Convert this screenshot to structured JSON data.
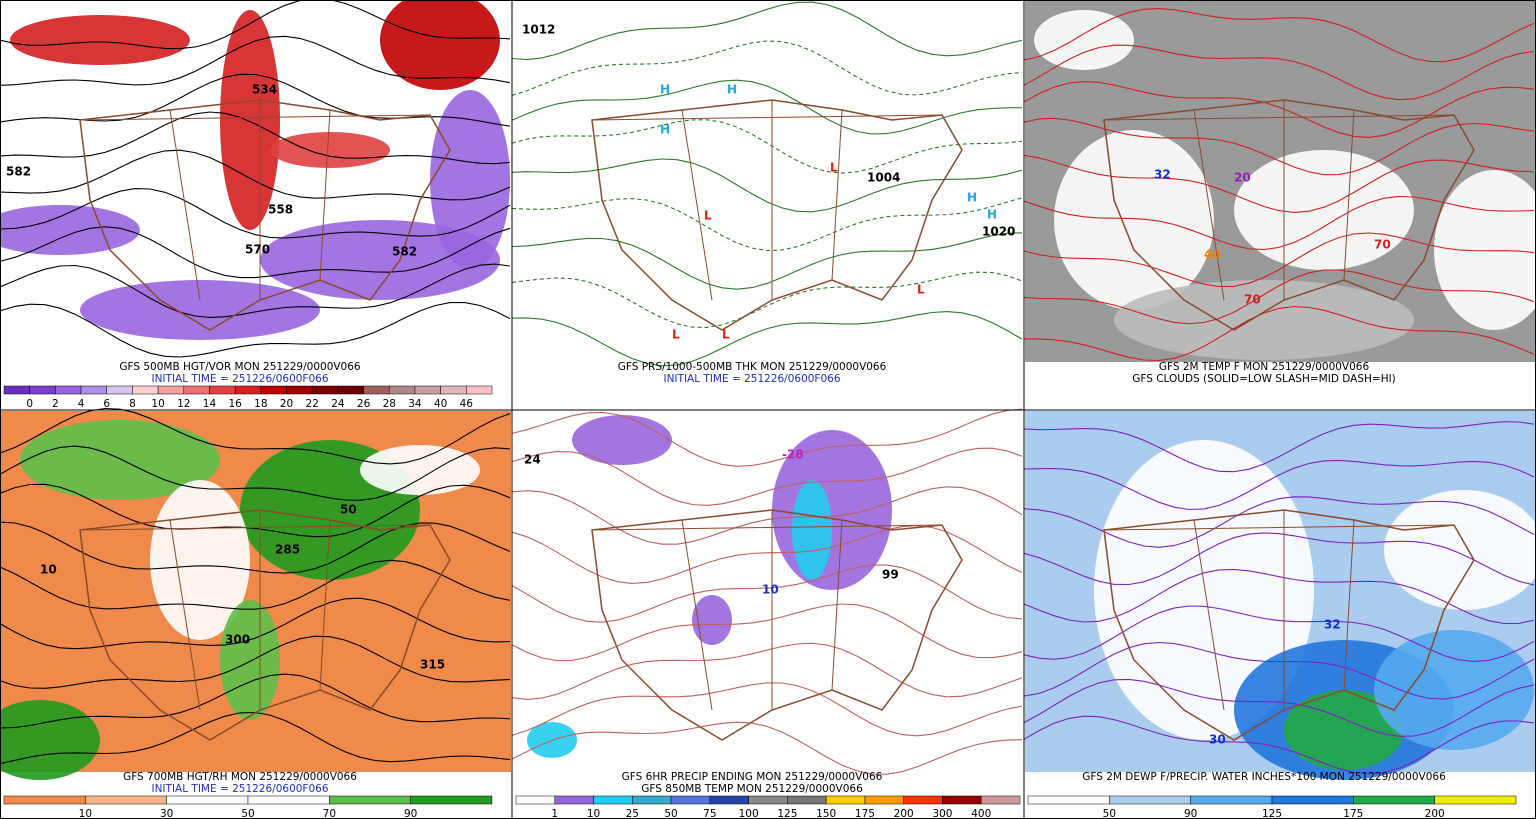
{
  "panels": [
    {
      "background": "#ffffff",
      "captions": [
        {
          "text": "GFS 500MB HGT/VOR MON 251229/0000V066",
          "color": "#000000"
        },
        {
          "text": "INITIAL TIME = 251226/0600F066",
          "color": "#2030c0"
        }
      ],
      "colorbar": {
        "labels": [
          "0",
          "2",
          "4",
          "6",
          "8",
          "10",
          "12",
          "14",
          "16",
          "18",
          "20",
          "22",
          "24",
          "26",
          "28",
          "34",
          "40",
          "46"
        ],
        "colors": [
          "#6a2fc0",
          "#7a3fd0",
          "#9966e0",
          "#b08ee8",
          "#d8c4f0",
          "#fbd0d0",
          "#f4a0a0",
          "#ee7070",
          "#e04040",
          "#d42020",
          "#c00000",
          "#a00000",
          "#800000",
          "#6b0000",
          "#a06060",
          "#b08888",
          "#c8a0a0",
          "#e0b8b8",
          "#ffc0c8"
        ]
      },
      "labels": [
        {
          "text": "582",
          "color": "#000000"
        },
        {
          "text": "570",
          "color": "#000000"
        },
        {
          "text": "558",
          "color": "#000000"
        },
        {
          "text": "534",
          "color": "#000000"
        },
        {
          "text": "582",
          "color": "#000000"
        }
      ]
    },
    {
      "background": "#ffffff",
      "captions": [
        {
          "text": "GFS PRS/1000-500MB THK MON 251229/0000V066",
          "color": "#000000"
        },
        {
          "text": "INITIAL TIME = 251226/0600F066",
          "color": "#2030c0"
        }
      ],
      "labels": [
        {
          "text": "L",
          "color": "#e02010"
        },
        {
          "text": "L",
          "color": "#e02010"
        },
        {
          "text": "L",
          "color": "#e02010"
        },
        {
          "text": "L",
          "color": "#e02010"
        },
        {
          "text": "L",
          "color": "#e02010"
        },
        {
          "text": "H",
          "color": "#20a8e0"
        },
        {
          "text": "H",
          "color": "#20a8e0"
        },
        {
          "text": "H",
          "color": "#20a8e0"
        },
        {
          "text": "H",
          "color": "#20a8e0"
        },
        {
          "text": "H",
          "color": "#20a8e0"
        },
        {
          "text": "1012",
          "color": "#000000"
        },
        {
          "text": "1004",
          "color": "#000000"
        },
        {
          "text": "1020",
          "color": "#000000"
        }
      ]
    },
    {
      "background": "#9a9a9a",
      "captions": [
        {
          "text": "GFS 2M TEMP F MON 251229/0000V066",
          "color": "#000000"
        },
        {
          "text": "GFS CLOUDS (SOLID=LOW SLASH=MID DASH=HI)",
          "color": "#000000"
        }
      ],
      "labels": [
        {
          "text": "70",
          "color": "#d02020"
        },
        {
          "text": "70",
          "color": "#d02020"
        },
        {
          "text": "32",
          "color": "#1030d0"
        },
        {
          "text": "40",
          "color": "#f08000"
        },
        {
          "text": "20",
          "color": "#9020c0"
        }
      ]
    },
    {
      "background": "#ef8a4a",
      "captions": [
        {
          "text": "GFS 700MB HGT/RH MON 251229/0000V066",
          "color": "#000000"
        },
        {
          "text": "INITIAL TIME = 251226/0600F066",
          "color": "#2030c0"
        }
      ],
      "colorbar": {
        "labels": [
          "10",
          "30",
          "50",
          "70",
          "90"
        ],
        "colors": [
          "#ef8a4a",
          "#f7b585",
          "#ffffff",
          "#ffffff",
          "#5cbf4a",
          "#1e9a1e"
        ]
      },
      "labels": [
        {
          "text": "285",
          "color": "#000000"
        },
        {
          "text": "300",
          "color": "#000000"
        },
        {
          "text": "315",
          "color": "#000000"
        },
        {
          "text": "50",
          "color": "#000000"
        },
        {
          "text": "10",
          "color": "#000000"
        }
      ]
    },
    {
      "background": "#ffffff",
      "captions": [
        {
          "text": "GFS 6HR PRECIP ENDING MON 251229/0000V066",
          "color": "#000000"
        },
        {
          "text": "GFS 850MB TEMP MON 251229/0000V066",
          "color": "#000000"
        }
      ],
      "colorbar": {
        "labels": [
          "1",
          "10",
          "25",
          "50",
          "75",
          "100",
          "125",
          "150",
          "175",
          "200",
          "300",
          "400"
        ],
        "colors": [
          "#ffffff",
          "#9966dd",
          "#22ccee",
          "#33aacc",
          "#5577dd",
          "#2244aa",
          "#888888",
          "#777777",
          "#ffcc00",
          "#ff9900",
          "#ff3300",
          "#990000",
          "#cc9999"
        ]
      },
      "labels": [
        {
          "text": "24",
          "color": "#000000"
        },
        {
          "text": "10",
          "color": "#2030c0"
        },
        {
          "text": "99",
          "color": "#000000"
        },
        {
          "text": "-28",
          "color": "#c020c0"
        }
      ]
    },
    {
      "background": "#aaccee",
      "captions": [
        {
          "text": "GFS 2M DEWP F/PRECIP. WATER INCHES*100 MON 251229/0000V066",
          "color": "#000000"
        }
      ],
      "colorbar": {
        "labels": [
          "50",
          "90",
          "125",
          "175",
          "200"
        ],
        "colors": [
          "#ffffff",
          "#aaccee",
          "#55aaee",
          "#2277dd",
          "#22aa44",
          "#eeee00"
        ]
      },
      "labels": [
        {
          "text": "30",
          "color": "#1030d0"
        },
        {
          "text": "32",
          "color": "#1030d0"
        }
      ]
    }
  ]
}
